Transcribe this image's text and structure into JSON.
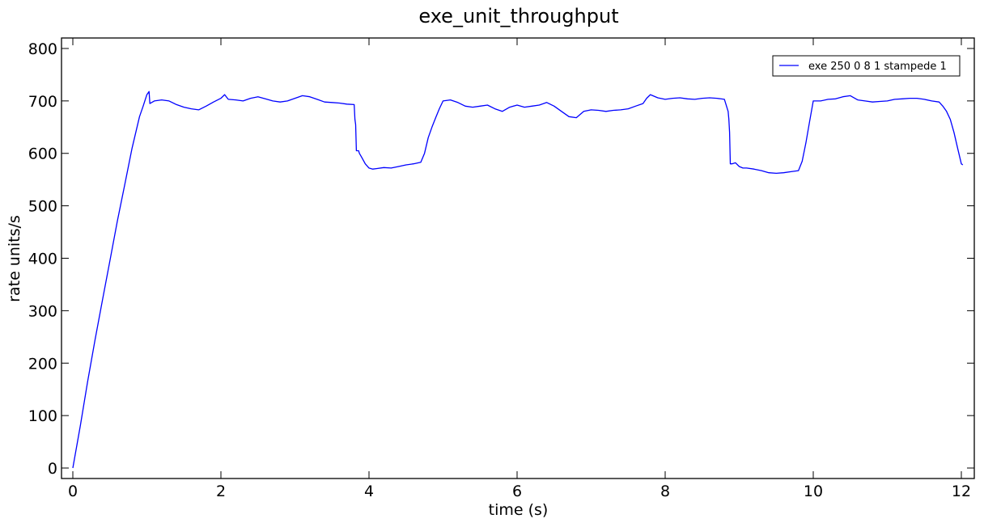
{
  "chart_data": {
    "type": "line",
    "title": "exe_unit_throughput",
    "xlabel": "time (s)",
    "ylabel": "rate units/s",
    "xlim": [
      0,
      12.1
    ],
    "ylim": [
      -20,
      820
    ],
    "xticks": [
      0,
      2,
      4,
      6,
      8,
      10,
      12
    ],
    "yticks": [
      0,
      100,
      200,
      300,
      400,
      500,
      600,
      700,
      800
    ],
    "grid": false,
    "legend_position": "top-right",
    "series": [
      {
        "name": "exe 250 0 8 1 stampede 1",
        "color": "#0000ff",
        "x": [
          0,
          0.1,
          0.2,
          0.3,
          0.4,
          0.5,
          0.6,
          0.7,
          0.8,
          0.85,
          0.9,
          0.95,
          1.0,
          1.03,
          1.04,
          1.1,
          1.2,
          1.3,
          1.4,
          1.5,
          1.6,
          1.7,
          1.8,
          1.9,
          2.0,
          2.05,
          2.1,
          2.2,
          2.3,
          2.4,
          2.5,
          2.6,
          2.7,
          2.8,
          2.9,
          3.0,
          3.1,
          3.2,
          3.3,
          3.4,
          3.5,
          3.6,
          3.7,
          3.8,
          3.81,
          3.82,
          3.83,
          3.86,
          3.87,
          3.9,
          3.95,
          4.0,
          4.05,
          4.1,
          4.2,
          4.3,
          4.4,
          4.5,
          4.6,
          4.7,
          4.75,
          4.8,
          4.85,
          4.9,
          4.95,
          5.0,
          5.1,
          5.2,
          5.3,
          5.4,
          5.5,
          5.6,
          5.7,
          5.8,
          5.9,
          6.0,
          6.1,
          6.2,
          6.3,
          6.4,
          6.5,
          6.6,
          6.7,
          6.8,
          6.9,
          7.0,
          7.1,
          7.2,
          7.3,
          7.4,
          7.5,
          7.6,
          7.7,
          7.75,
          7.8,
          7.9,
          8.0,
          8.1,
          8.2,
          8.3,
          8.4,
          8.5,
          8.6,
          8.7,
          8.8,
          8.85,
          8.86,
          8.87,
          8.88,
          8.9,
          8.95,
          9.0,
          9.05,
          9.1,
          9.2,
          9.3,
          9.4,
          9.5,
          9.6,
          9.7,
          9.8,
          9.85,
          9.9,
          9.95,
          10.0,
          10.05,
          10.1,
          10.2,
          10.3,
          10.4,
          10.5,
          10.6,
          10.7,
          10.8,
          10.9,
          11.0,
          11.1,
          11.2,
          11.3,
          11.4,
          11.5,
          11.6,
          11.7,
          11.75,
          11.8,
          11.85,
          11.9,
          11.95,
          12.0,
          12.02
        ],
        "y": [
          0,
          80,
          165,
          245,
          320,
          395,
          470,
          540,
          610,
          640,
          670,
          690,
          712,
          718,
          695,
          700,
          702,
          700,
          693,
          688,
          685,
          683,
          690,
          698,
          705,
          712,
          703,
          702,
          700,
          705,
          708,
          704,
          700,
          698,
          700,
          705,
          710,
          708,
          703,
          698,
          697,
          696,
          694,
          693,
          665,
          655,
          605,
          605,
          600,
          593,
          580,
          572,
          570,
          571,
          573,
          572,
          575,
          578,
          580,
          583,
          600,
          630,
          650,
          668,
          685,
          700,
          702,
          697,
          690,
          688,
          690,
          692,
          685,
          680,
          688,
          692,
          688,
          690,
          692,
          697,
          690,
          680,
          670,
          668,
          680,
          683,
          682,
          680,
          682,
          683,
          685,
          690,
          695,
          705,
          712,
          706,
          703,
          705,
          706,
          704,
          703,
          705,
          706,
          705,
          703,
          680,
          665,
          640,
          580,
          580,
          582,
          575,
          572,
          572,
          570,
          567,
          563,
          562,
          563,
          565,
          567,
          585,
          620,
          660,
          700,
          700,
          700,
          703,
          704,
          708,
          710,
          702,
          700,
          698,
          699,
          700,
          703,
          704,
          705,
          705,
          703,
          700,
          698,
          690,
          680,
          665,
          640,
          610,
          580,
          578
        ]
      }
    ]
  }
}
